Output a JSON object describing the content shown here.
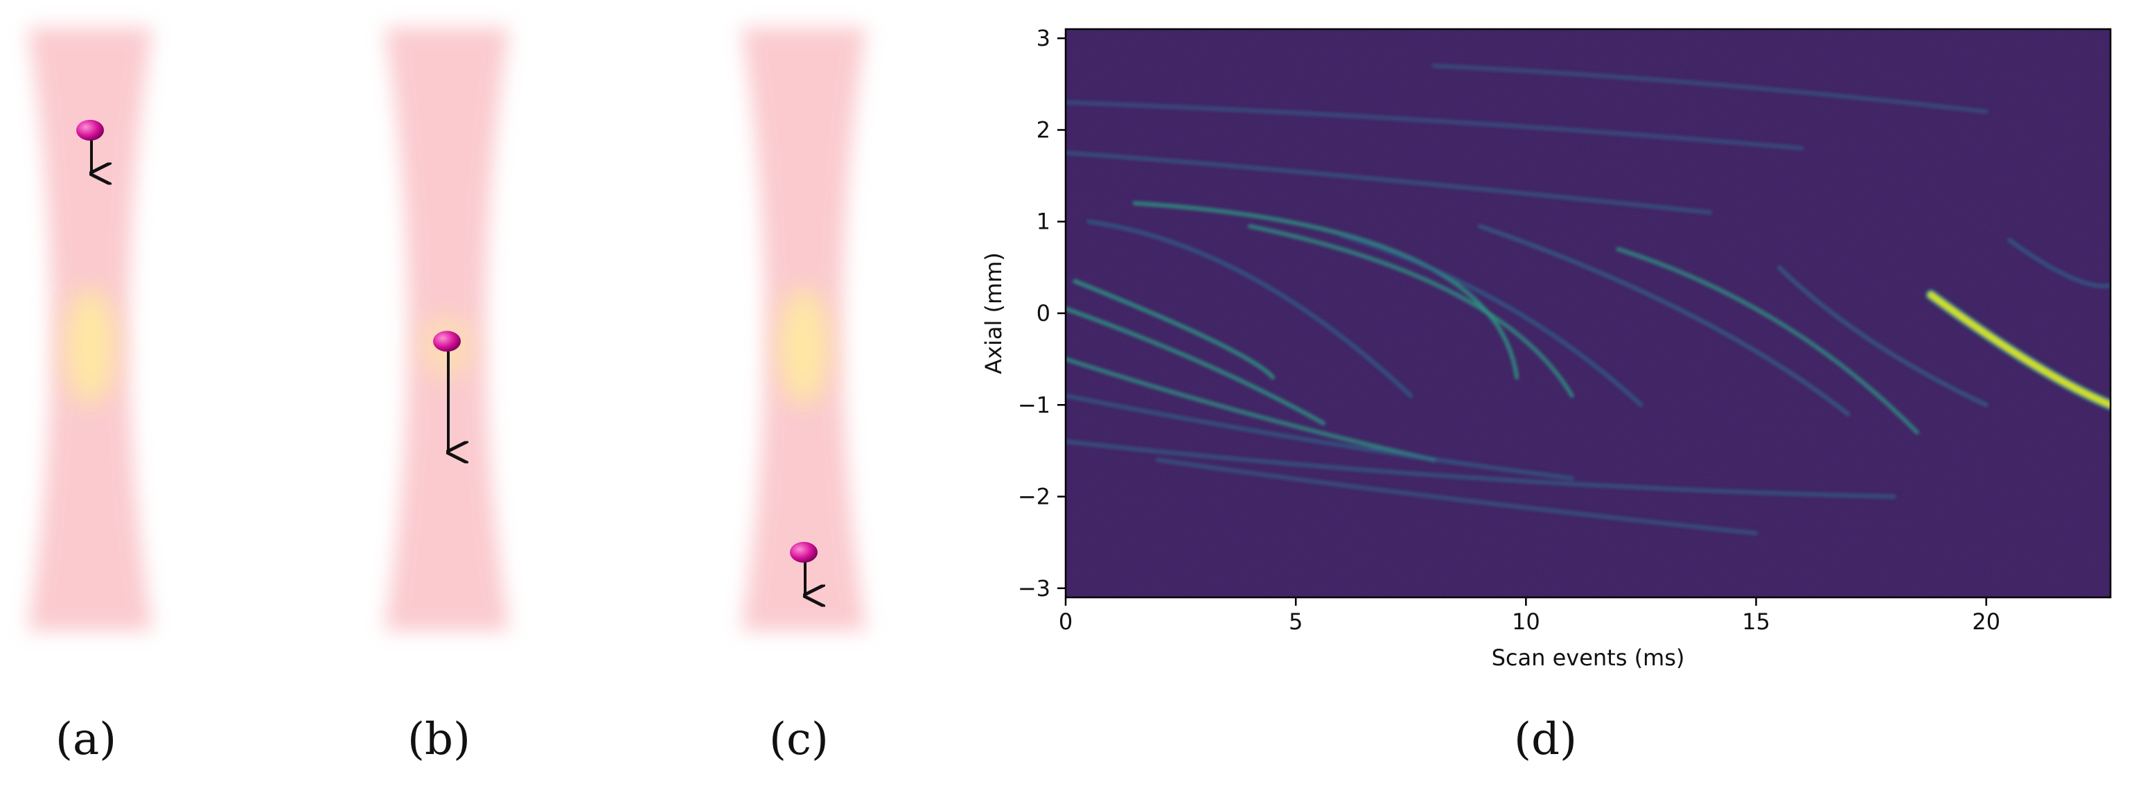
{
  "figure": {
    "panel_labels": [
      "(a)",
      "(b)",
      "(c)",
      "(d)"
    ]
  },
  "beam_panels": [
    {
      "id": "a",
      "particle_y_fraction": 0.17,
      "arrow_length_rel": 0.25,
      "hot_center": true
    },
    {
      "id": "b",
      "particle_y_fraction": 0.52,
      "arrow_length_rel": 1.0,
      "hot_center": false
    },
    {
      "id": "c",
      "particle_y_fraction": 0.87,
      "arrow_length_rel": 0.25,
      "hot_center": true
    }
  ],
  "colors": {
    "beam": "#f7a0a8",
    "beam_hot": "#ffe9a0",
    "particle": "#d6129a",
    "heatmap_background": "#3a1d5e",
    "streak_low": "#2f6d8e",
    "streak_mid": "#2aa987",
    "streak_high": "#d9e51e"
  },
  "chart_data": {
    "type": "heatmap",
    "title": "",
    "xlabel": "Scan events (ms)",
    "ylabel": "Axial (mm)",
    "xlim": [
      0,
      22.7
    ],
    "ylim": [
      -3.1,
      3.1
    ],
    "xticks": [
      0,
      5,
      10,
      15,
      20
    ],
    "yticks": [
      -3,
      -2,
      -1,
      0,
      1,
      2,
      3
    ],
    "colormap": "viridis",
    "grid": false,
    "streaks": [
      {
        "x": [
          0.2,
          3.2,
          4.5
        ],
        "y": [
          0.35,
          -0.3,
          -0.7
        ],
        "intensity": 0.55
      },
      {
        "x": [
          0.0,
          3.0,
          5.6
        ],
        "y": [
          0.05,
          -0.55,
          -1.2
        ],
        "intensity": 0.5
      },
      {
        "x": [
          0.0,
          4.0,
          8.0
        ],
        "y": [
          -0.5,
          -1.1,
          -1.6
        ],
        "intensity": 0.45
      },
      {
        "x": [
          0.0,
          5.5,
          11.0
        ],
        "y": [
          -0.9,
          -1.4,
          -1.8
        ],
        "intensity": 0.3
      },
      {
        "x": [
          0.0,
          9.0,
          18.0
        ],
        "y": [
          -1.4,
          -1.8,
          -2.0
        ],
        "intensity": 0.25
      },
      {
        "x": [
          0.5,
          4.0,
          7.5
        ],
        "y": [
          1.0,
          0.4,
          -0.9
        ],
        "intensity": 0.35
      },
      {
        "x": [
          1.5,
          7.5,
          9.8
        ],
        "y": [
          1.2,
          0.6,
          -0.7
        ],
        "intensity": 0.5
      },
      {
        "x": [
          4.0,
          8.5,
          11.0
        ],
        "y": [
          0.95,
          0.2,
          -0.9
        ],
        "intensity": 0.45
      },
      {
        "x": [
          6.0,
          9.5,
          12.5
        ],
        "y": [
          0.85,
          0.1,
          -1.0
        ],
        "intensity": 0.35
      },
      {
        "x": [
          9.0,
          13.5,
          17.0
        ],
        "y": [
          0.95,
          0.0,
          -1.1
        ],
        "intensity": 0.4
      },
      {
        "x": [
          12.0,
          15.5,
          18.5
        ],
        "y": [
          0.7,
          -0.1,
          -1.3
        ],
        "intensity": 0.45
      },
      {
        "x": [
          15.5,
          17.5,
          20.0
        ],
        "y": [
          0.5,
          -0.3,
          -1.0
        ],
        "intensity": 0.4
      },
      {
        "x": [
          18.8,
          21.0,
          22.7
        ],
        "y": [
          0.2,
          -0.55,
          -1.0
        ],
        "intensity": 1.0
      },
      {
        "x": [
          20.5,
          21.8,
          22.7
        ],
        "y": [
          0.8,
          0.4,
          0.3
        ],
        "intensity": 0.35
      },
      {
        "x": [
          0.0,
          6.0,
          14.0
        ],
        "y": [
          1.75,
          1.5,
          1.1
        ],
        "intensity": 0.2
      },
      {
        "x": [
          0.0,
          8.0,
          16.0
        ],
        "y": [
          2.3,
          2.1,
          1.8
        ],
        "intensity": 0.15
      },
      {
        "x": [
          2.0,
          8.0,
          15.0
        ],
        "y": [
          -1.6,
          -2.0,
          -2.4
        ],
        "intensity": 0.2
      },
      {
        "x": [
          8.0,
          14.0,
          20.0
        ],
        "y": [
          2.7,
          2.5,
          2.2
        ],
        "intensity": 0.12
      }
    ]
  }
}
